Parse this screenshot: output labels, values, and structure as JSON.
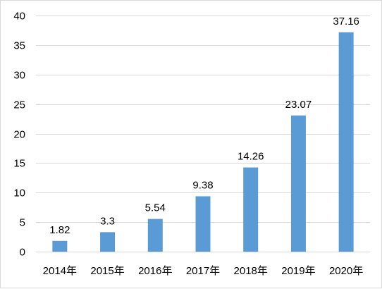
{
  "chart_data": {
    "type": "bar",
    "categories": [
      "2014年",
      "2015年",
      "2016年",
      "2017年",
      "2018年",
      "2019年",
      "2020年"
    ],
    "values": [
      1.82,
      3.3,
      5.54,
      9.38,
      14.26,
      23.07,
      37.16
    ],
    "data_labels": [
      "1.82",
      "3.3",
      "5.54",
      "9.38",
      "14.26",
      "23.07",
      "37.16"
    ],
    "y_ticks": [
      "0",
      "5",
      "10",
      "15",
      "20",
      "25",
      "30",
      "35",
      "40"
    ],
    "ylim": [
      0,
      40
    ],
    "grid": true,
    "bar_color": "#5b9bd5",
    "title": "",
    "xlabel": "",
    "ylabel": ""
  }
}
